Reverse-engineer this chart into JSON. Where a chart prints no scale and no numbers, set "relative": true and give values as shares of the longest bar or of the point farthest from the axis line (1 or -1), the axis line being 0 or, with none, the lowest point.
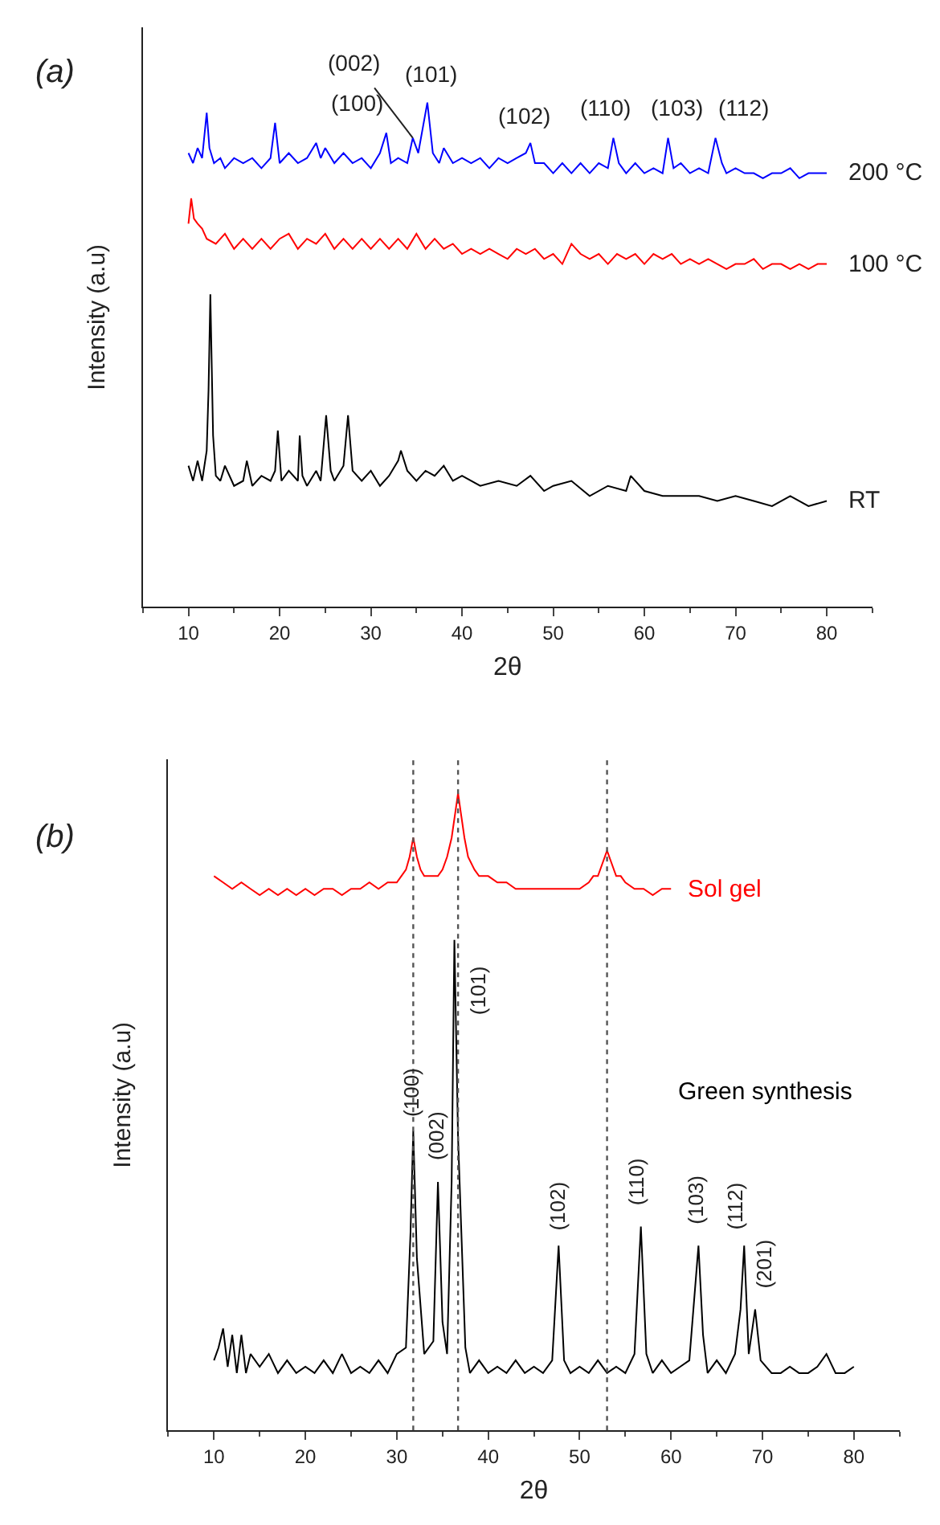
{
  "chart_data": [
    {
      "type": "line",
      "relative": true,
      "xlim": [
        5,
        85
      ],
      "xticks": [
        10,
        20,
        30,
        40,
        50,
        60,
        70,
        80
      ],
      "xlabel": "2θ",
      "ylabel": "Intensity (a.u)",
      "annotations": [
        "(a)",
        {
          "text": "(002)",
          "x": 34.6,
          "y": 0.93
        },
        {
          "text": "(100)",
          "x": 31.7,
          "y": 0.94
        },
        {
          "text": "(101)",
          "x": 36.2,
          "y": 1.0
        },
        {
          "text": "(102)",
          "x": 47.5,
          "y": 0.92
        },
        {
          "text": "(110)",
          "x": 56.6,
          "y": 0.93
        },
        {
          "text": "(103)",
          "x": 62.6,
          "y": 0.93
        },
        {
          "text": "(112)",
          "x": 67.8,
          "y": 0.93
        }
      ],
      "series": [
        {
          "name": "200 °C",
          "color": "#0000ff",
          "x": [
            10,
            10.5,
            11,
            11.5,
            12,
            12.3,
            12.8,
            13.5,
            14,
            15,
            16,
            17,
            18,
            19,
            19.5,
            20,
            21,
            22,
            23,
            24,
            24.5,
            25,
            26,
            27,
            28,
            29,
            30,
            31,
            31.7,
            32.2,
            33,
            34,
            34.6,
            35.2,
            36.2,
            36.8,
            37.5,
            38,
            39,
            40,
            41,
            42,
            43,
            44,
            45,
            46,
            47,
            47.5,
            48,
            49,
            50,
            51,
            52,
            53,
            54,
            55,
            56,
            56.6,
            57.2,
            58,
            59,
            60,
            61,
            62,
            62.6,
            63.2,
            64,
            65,
            66,
            67,
            67.8,
            68.5,
            69,
            70,
            71,
            72,
            73,
            74,
            75,
            76,
            77,
            78,
            79,
            80
          ],
          "values": [
            0.9,
            0.88,
            0.91,
            0.89,
            0.98,
            0.91,
            0.88,
            0.89,
            0.87,
            0.89,
            0.88,
            0.89,
            0.87,
            0.89,
            0.96,
            0.88,
            0.9,
            0.88,
            0.89,
            0.92,
            0.89,
            0.91,
            0.88,
            0.9,
            0.88,
            0.89,
            0.87,
            0.9,
            0.94,
            0.88,
            0.89,
            0.88,
            0.93,
            0.9,
            1.0,
            0.9,
            0.88,
            0.91,
            0.88,
            0.89,
            0.88,
            0.89,
            0.87,
            0.89,
            0.88,
            0.89,
            0.9,
            0.92,
            0.88,
            0.88,
            0.86,
            0.88,
            0.86,
            0.88,
            0.86,
            0.88,
            0.87,
            0.93,
            0.88,
            0.86,
            0.88,
            0.86,
            0.87,
            0.86,
            0.93,
            0.87,
            0.88,
            0.86,
            0.87,
            0.86,
            0.93,
            0.88,
            0.86,
            0.87,
            0.86,
            0.86,
            0.85,
            0.86,
            0.86,
            0.87,
            0.85,
            0.86,
            0.86,
            0.86
          ]
        },
        {
          "name": "100 °C",
          "color": "#ff0000",
          "x": [
            10,
            10.3,
            10.6,
            11,
            11.5,
            12,
            13,
            14,
            15,
            16,
            17,
            18,
            19,
            20,
            21,
            22,
            23,
            24,
            25,
            26,
            27,
            28,
            29,
            30,
            31,
            32,
            33,
            34,
            35,
            36,
            37,
            38,
            39,
            40,
            41,
            42,
            43,
            44,
            45,
            46,
            47,
            48,
            49,
            50,
            51,
            52,
            53,
            54,
            55,
            56,
            57,
            58,
            59,
            60,
            61,
            62,
            63,
            64,
            65,
            66,
            67,
            68,
            69,
            70,
            71,
            72,
            73,
            74,
            75,
            76,
            77,
            78,
            79,
            80
          ],
          "values": [
            0.76,
            0.81,
            0.77,
            0.76,
            0.75,
            0.73,
            0.72,
            0.74,
            0.71,
            0.73,
            0.71,
            0.73,
            0.71,
            0.73,
            0.74,
            0.71,
            0.73,
            0.72,
            0.74,
            0.71,
            0.73,
            0.71,
            0.73,
            0.71,
            0.73,
            0.71,
            0.73,
            0.71,
            0.74,
            0.71,
            0.73,
            0.71,
            0.72,
            0.7,
            0.71,
            0.7,
            0.71,
            0.7,
            0.69,
            0.71,
            0.7,
            0.71,
            0.69,
            0.7,
            0.68,
            0.72,
            0.7,
            0.69,
            0.7,
            0.68,
            0.7,
            0.69,
            0.7,
            0.68,
            0.7,
            0.69,
            0.7,
            0.68,
            0.69,
            0.68,
            0.69,
            0.68,
            0.67,
            0.68,
            0.68,
            0.69,
            0.67,
            0.68,
            0.68,
            0.67,
            0.68,
            0.67,
            0.68,
            0.68
          ]
        },
        {
          "name": "RT",
          "color": "#000000",
          "x": [
            10,
            10.5,
            11,
            11.5,
            12,
            12.2,
            12.4,
            12.7,
            13,
            13.5,
            14,
            15,
            16,
            16.4,
            17,
            18,
            19,
            19.5,
            19.8,
            20.2,
            21,
            22,
            22.2,
            22.5,
            23,
            24,
            24.5,
            25.1,
            25.6,
            26,
            27,
            27.5,
            28,
            29,
            30,
            31,
            32,
            33,
            33.3,
            34,
            35,
            36,
            37,
            38,
            39,
            40,
            42,
            44,
            46,
            47.5,
            49,
            50,
            52,
            54,
            56,
            58,
            58.5,
            60,
            62,
            64,
            66,
            68,
            70,
            72,
            74,
            76,
            78,
            80
          ],
          "values": [
            0.28,
            0.25,
            0.29,
            0.25,
            0.31,
            0.43,
            0.62,
            0.34,
            0.26,
            0.25,
            0.28,
            0.24,
            0.25,
            0.29,
            0.24,
            0.26,
            0.25,
            0.27,
            0.35,
            0.25,
            0.27,
            0.25,
            0.34,
            0.26,
            0.24,
            0.27,
            0.25,
            0.38,
            0.27,
            0.25,
            0.28,
            0.38,
            0.27,
            0.25,
            0.27,
            0.24,
            0.26,
            0.29,
            0.31,
            0.27,
            0.25,
            0.27,
            0.26,
            0.28,
            0.25,
            0.26,
            0.24,
            0.25,
            0.24,
            0.26,
            0.23,
            0.24,
            0.25,
            0.22,
            0.24,
            0.23,
            0.26,
            0.23,
            0.22,
            0.22,
            0.22,
            0.21,
            0.22,
            0.21,
            0.2,
            0.22,
            0.2,
            0.21
          ]
        }
      ]
    },
    {
      "type": "line",
      "relative": true,
      "xlim": [
        5,
        85
      ],
      "xticks": [
        10,
        20,
        30,
        40,
        50,
        60,
        70,
        80
      ],
      "xlabel": "2θ",
      "ylabel": "Intensity (a.u)",
      "annotations": [
        "(b)",
        {
          "text": "(100)",
          "x": 31.8,
          "y": 0.47
        },
        {
          "text": "(002)",
          "x": 34.5,
          "y": 0.39
        },
        {
          "text": "(101)",
          "x": 36.3,
          "y": 0.77
        },
        {
          "text": "(102)",
          "x": 47.7,
          "y": 0.29
        },
        {
          "text": "(110)",
          "x": 56.7,
          "y": 0.32
        },
        {
          "text": "(103)",
          "x": 63,
          "y": 0.29
        },
        {
          "text": "(112)",
          "x": 68,
          "y": 0.29
        },
        {
          "text": "(201)",
          "x": 69.2,
          "y": 0.19
        }
      ],
      "ref_lines": [
        {
          "axis": "x",
          "value": 31.8,
          "color": "#555555",
          "line_style": "dotted"
        },
        {
          "axis": "x",
          "value": 36.7,
          "color": "#555555",
          "line_style": "dotted"
        },
        {
          "axis": "x",
          "value": 53,
          "color": "#555555",
          "line_style": "dotted"
        }
      ],
      "series": [
        {
          "name": "Sol gel",
          "color": "#ff0000",
          "x": [
            10,
            11,
            12,
            13,
            14,
            15,
            16,
            17,
            18,
            19,
            20,
            21,
            22,
            23,
            24,
            25,
            26,
            27,
            28,
            29,
            30,
            30.5,
            31,
            31.4,
            31.8,
            32.2,
            32.6,
            33,
            33.5,
            34,
            34.5,
            35,
            35.5,
            36,
            36.4,
            36.7,
            37,
            37.4,
            37.8,
            38.5,
            39,
            40,
            41,
            42,
            43,
            44,
            45,
            46,
            47,
            48,
            49,
            50,
            51,
            51.5,
            52,
            52.5,
            53,
            53.5,
            54,
            54.5,
            55,
            56,
            57,
            58,
            59,
            60
          ],
          "values": [
            0.87,
            0.86,
            0.85,
            0.86,
            0.85,
            0.84,
            0.85,
            0.84,
            0.85,
            0.84,
            0.85,
            0.84,
            0.85,
            0.85,
            0.84,
            0.85,
            0.85,
            0.86,
            0.85,
            0.86,
            0.86,
            0.87,
            0.88,
            0.9,
            0.93,
            0.9,
            0.88,
            0.87,
            0.87,
            0.87,
            0.87,
            0.88,
            0.9,
            0.93,
            0.97,
            1.0,
            0.97,
            0.93,
            0.9,
            0.88,
            0.87,
            0.87,
            0.86,
            0.86,
            0.85,
            0.85,
            0.85,
            0.85,
            0.85,
            0.85,
            0.85,
            0.85,
            0.86,
            0.87,
            0.87,
            0.89,
            0.91,
            0.89,
            0.87,
            0.87,
            0.86,
            0.85,
            0.85,
            0.84,
            0.85,
            0.85
          ]
        },
        {
          "name": "Green synthesis",
          "color": "#000000",
          "x": [
            10,
            10.5,
            11,
            11.5,
            12,
            12.5,
            13,
            13.5,
            14,
            15,
            16,
            17,
            18,
            19,
            20,
            21,
            22,
            23,
            24,
            25,
            26,
            27,
            28,
            29,
            30,
            31,
            31.5,
            31.8,
            32.2,
            33,
            34,
            34.5,
            35,
            35.5,
            36,
            36.3,
            36.7,
            37.5,
            38,
            39,
            40,
            41,
            42,
            43,
            44,
            45,
            46,
            47,
            47.7,
            48.3,
            49,
            50,
            51,
            52,
            53,
            54,
            55,
            56,
            56.7,
            57.3,
            58,
            59,
            60,
            61,
            62,
            63,
            63.5,
            64,
            65,
            66,
            67,
            67.6,
            68,
            68.5,
            69.2,
            69.8,
            71,
            72,
            73,
            74,
            75,
            76,
            77,
            78,
            79,
            80
          ],
          "values": [
            0.11,
            0.13,
            0.16,
            0.1,
            0.15,
            0.09,
            0.15,
            0.09,
            0.12,
            0.1,
            0.12,
            0.09,
            0.11,
            0.09,
            0.1,
            0.09,
            0.11,
            0.09,
            0.12,
            0.09,
            0.1,
            0.09,
            0.11,
            0.09,
            0.12,
            0.13,
            0.31,
            0.47,
            0.27,
            0.12,
            0.14,
            0.39,
            0.17,
            0.12,
            0.39,
            0.77,
            0.46,
            0.13,
            0.09,
            0.11,
            0.09,
            0.1,
            0.09,
            0.11,
            0.09,
            0.1,
            0.09,
            0.11,
            0.29,
            0.11,
            0.09,
            0.1,
            0.09,
            0.11,
            0.09,
            0.1,
            0.09,
            0.12,
            0.32,
            0.12,
            0.09,
            0.11,
            0.09,
            0.1,
            0.11,
            0.29,
            0.15,
            0.09,
            0.11,
            0.09,
            0.12,
            0.19,
            0.29,
            0.12,
            0.19,
            0.11,
            0.09,
            0.09,
            0.1,
            0.09,
            0.09,
            0.1,
            0.12,
            0.09,
            0.09,
            0.1
          ]
        }
      ]
    }
  ]
}
